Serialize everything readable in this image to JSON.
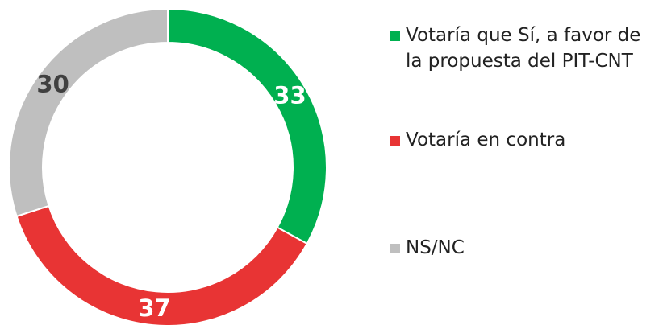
{
  "chart_data": {
    "type": "pie",
    "donut": true,
    "categories": [
      "Votaría que Sí, a favor de la propuesta del PIT-CNT",
      "Votaría en contra",
      "NS/NC"
    ],
    "values": [
      33,
      37,
      30
    ],
    "colors": [
      "#00b050",
      "#e83434",
      "#bfbfbf"
    ]
  }
}
